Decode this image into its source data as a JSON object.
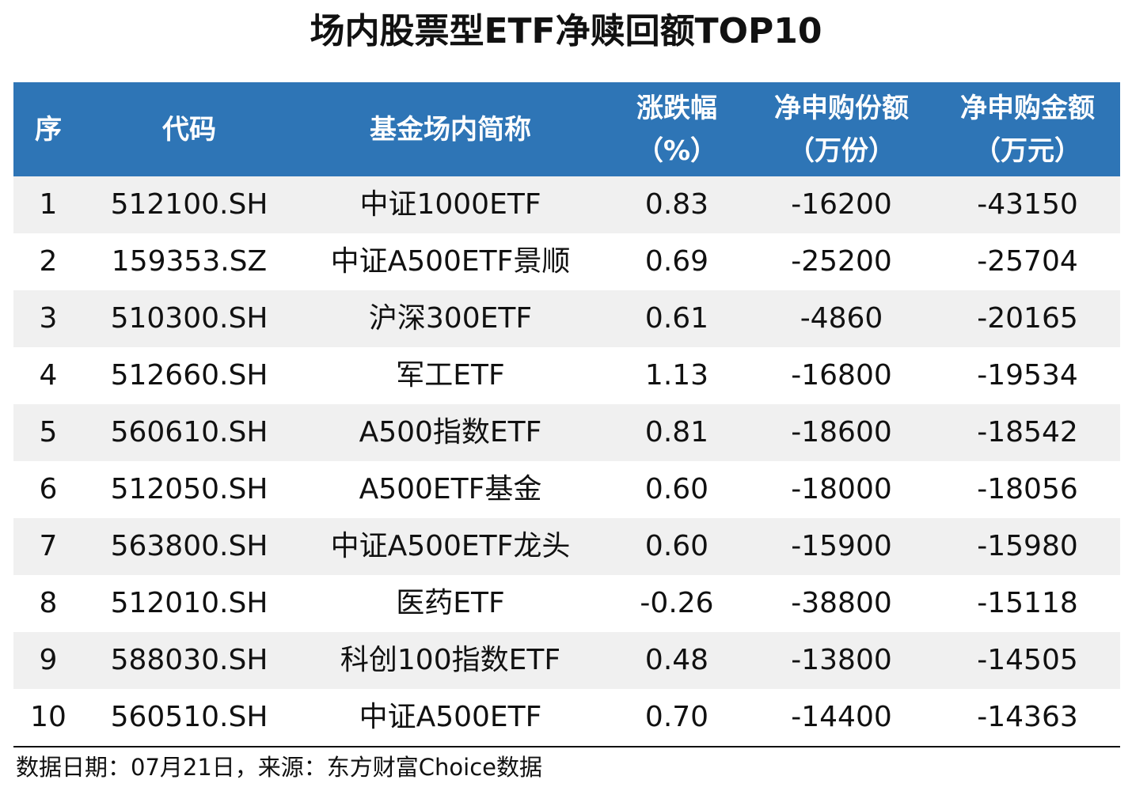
{
  "title": "场内股票型ETF净赎回额TOP10",
  "chart_data": {
    "type": "table",
    "title": "场内股票型ETF净赎回额TOP10",
    "columns": [
      [
        "序"
      ],
      [
        "代码"
      ],
      [
        "基金场内简称"
      ],
      [
        "涨跌幅",
        "（%）"
      ],
      [
        "净申购份额",
        "（万份）"
      ],
      [
        "净申购金额",
        "（万元）"
      ]
    ],
    "rows": [
      [
        "1",
        "512100.SH",
        "中证1000ETF",
        "0.83",
        "-16200",
        "-43150"
      ],
      [
        "2",
        "159353.SZ",
        "中证A500ETF景顺",
        "0.69",
        "-25200",
        "-25704"
      ],
      [
        "3",
        "510300.SH",
        "沪深300ETF",
        "0.61",
        "-4860",
        "-20165"
      ],
      [
        "4",
        "512660.SH",
        "军工ETF",
        "1.13",
        "-16800",
        "-19534"
      ],
      [
        "5",
        "560610.SH",
        "A500指数ETF",
        "0.81",
        "-18600",
        "-18542"
      ],
      [
        "6",
        "512050.SH",
        "A500ETF基金",
        "0.60",
        "-18000",
        "-18056"
      ],
      [
        "7",
        "563800.SH",
        "中证A500ETF龙头",
        "0.60",
        "-15900",
        "-15980"
      ],
      [
        "8",
        "512010.SH",
        "医药ETF",
        "-0.26",
        "-38800",
        "-15118"
      ],
      [
        "9",
        "588030.SH",
        "科创100指数ETF",
        "0.48",
        "-13800",
        "-14505"
      ],
      [
        "10",
        "560510.SH",
        "中证A500ETF",
        "0.70",
        "-14400",
        "-14363"
      ]
    ]
  },
  "footer": {
    "source": "数据日期：07月21日，来源：东方财富Choice数据"
  },
  "colors": {
    "header_bg": "#2e75b6",
    "header_text": "#ffffff",
    "row_shade": "#f0f0f0",
    "rule": "#111111"
  }
}
